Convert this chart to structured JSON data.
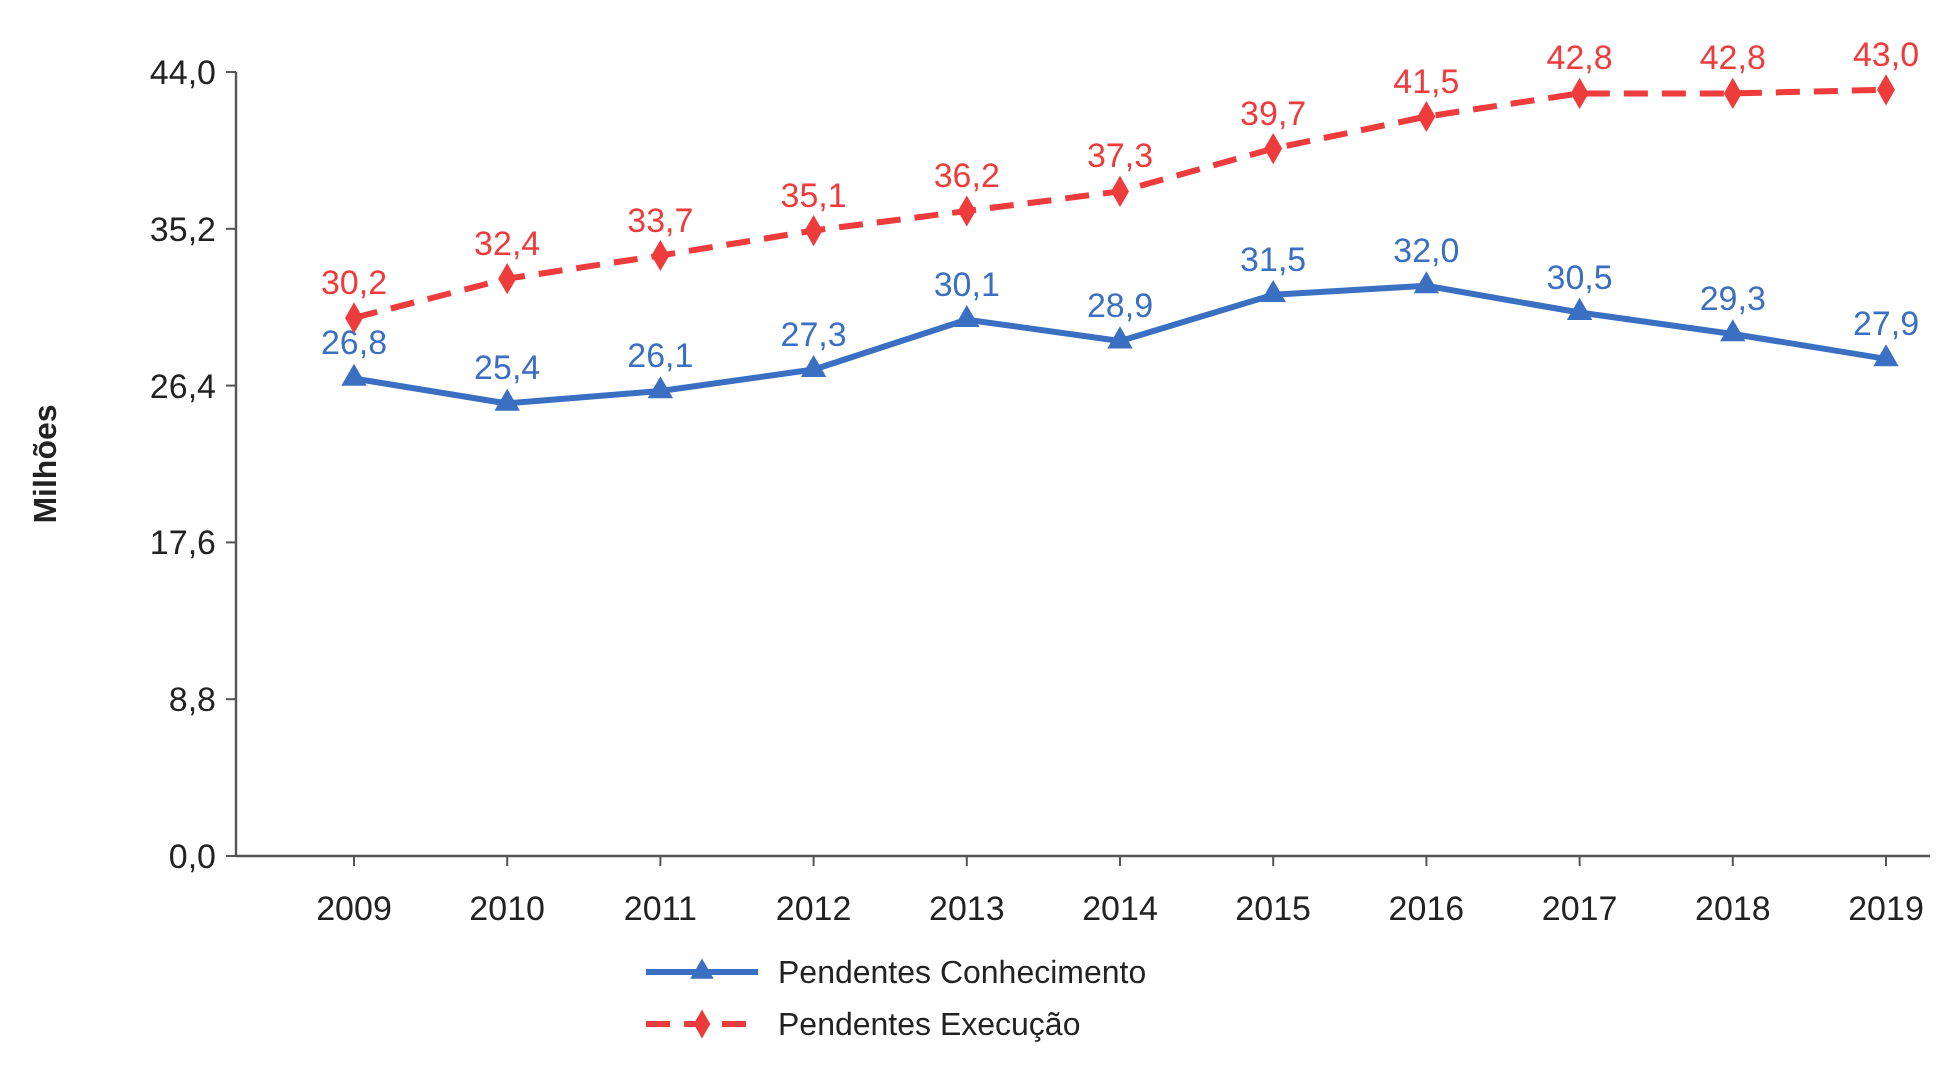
{
  "chart_data": {
    "type": "line",
    "ylabel": "Milhões",
    "categories": [
      "2009",
      "2010",
      "2011",
      "2012",
      "2013",
      "2014",
      "2015",
      "2016",
      "2017",
      "2018",
      "2019"
    ],
    "ylim": [
      0,
      44
    ],
    "yticks": [
      {
        "value": 0,
        "label": "0,0"
      },
      {
        "value": 8.8,
        "label": "8,8"
      },
      {
        "value": 17.6,
        "label": "17,6"
      },
      {
        "value": 26.4,
        "label": "26,4"
      },
      {
        "value": 35.2,
        "label": "35,2"
      },
      {
        "value": 44,
        "label": "44,0"
      }
    ],
    "grid": false,
    "legend": "bottom",
    "series": [
      {
        "name": "Pendentes Conhecimento",
        "color": "#3b6fc2",
        "marker": "triangle",
        "line_style": "solid",
        "values": [
          26.8,
          25.4,
          26.1,
          27.3,
          30.1,
          28.9,
          31.5,
          32.0,
          30.5,
          29.3,
          27.9
        ],
        "value_labels": [
          "26,8",
          "25,4",
          "26,1",
          "27,3",
          "30,1",
          "28,9",
          "31,5",
          "32,0",
          "30,5",
          "29,3",
          "27,9"
        ]
      },
      {
        "name": "Pendentes Execução",
        "color": "#ee3b3b",
        "marker": "diamond",
        "line_style": "dashed",
        "values": [
          30.2,
          32.4,
          33.7,
          35.1,
          36.2,
          37.3,
          39.7,
          41.5,
          42.8,
          42.8,
          43.0
        ],
        "value_labels": [
          "30,2",
          "32,4",
          "33,7",
          "35,1",
          "36,2",
          "37,3",
          "39,7",
          "41,5",
          "42,8",
          "42,8",
          "43,0"
        ]
      }
    ]
  }
}
